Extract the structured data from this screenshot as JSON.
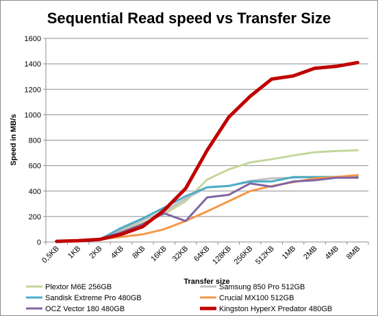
{
  "chart_data": {
    "type": "line",
    "title": "Sequential Read speed vs Transfer Size",
    "xlabel": "Transfer size",
    "ylabel": "Speed in MB/s",
    "categories": [
      "0,5KB",
      "1KB",
      "2KB",
      "4KB",
      "8KB",
      "16KB",
      "32KB",
      "64KB",
      "128KB",
      "256KB",
      "512KB",
      "1MB",
      "2MB",
      "4MB",
      "8MB"
    ],
    "ylim": [
      0,
      1600
    ],
    "yticks": [
      "0",
      "200",
      "400",
      "600",
      "800",
      "1000",
      "1200",
      "1400",
      "1600"
    ],
    "grid": true,
    "legend_position": "bottom",
    "series": [
      {
        "name": "Plextor M6E 256GB",
        "color": "#c3d69b",
        "width": 3,
        "values": [
          5,
          10,
          20,
          85,
          150,
          220,
          320,
          490,
          570,
          625,
          650,
          680,
          705,
          715,
          720
        ]
      },
      {
        "name": "Samsung 850 Pro 512GB",
        "color": "#c0c0c0",
        "width": 3,
        "values": [
          5,
          10,
          20,
          95,
          170,
          240,
          340,
          430,
          440,
          480,
          500,
          505,
          510,
          512,
          520
        ]
      },
      {
        "name": "Sandisk Extreme Pro 480GB",
        "color": "#4bacc6",
        "width": 3,
        "values": [
          5,
          10,
          20,
          110,
          185,
          270,
          360,
          430,
          440,
          475,
          475,
          510,
          510,
          510,
          510
        ]
      },
      {
        "name": "Crucial MX100 512GB",
        "color": "#f79646",
        "width": 3,
        "values": [
          5,
          10,
          20,
          40,
          60,
          100,
          165,
          240,
          320,
          400,
          440,
          470,
          500,
          510,
          525
        ]
      },
      {
        "name": "OCZ Vector 180 480GB",
        "color": "#8064a2",
        "width": 3,
        "values": [
          5,
          10,
          20,
          75,
          140,
          225,
          165,
          350,
          370,
          460,
          435,
          475,
          485,
          505,
          505
        ]
      },
      {
        "name": "Kingston HyperX Predator 480GB",
        "color": "#c00000",
        "width": 5,
        "values": [
          5,
          10,
          20,
          60,
          120,
          250,
          420,
          720,
          980,
          1145,
          1280,
          1305,
          1365,
          1380,
          1410
        ]
      }
    ]
  }
}
